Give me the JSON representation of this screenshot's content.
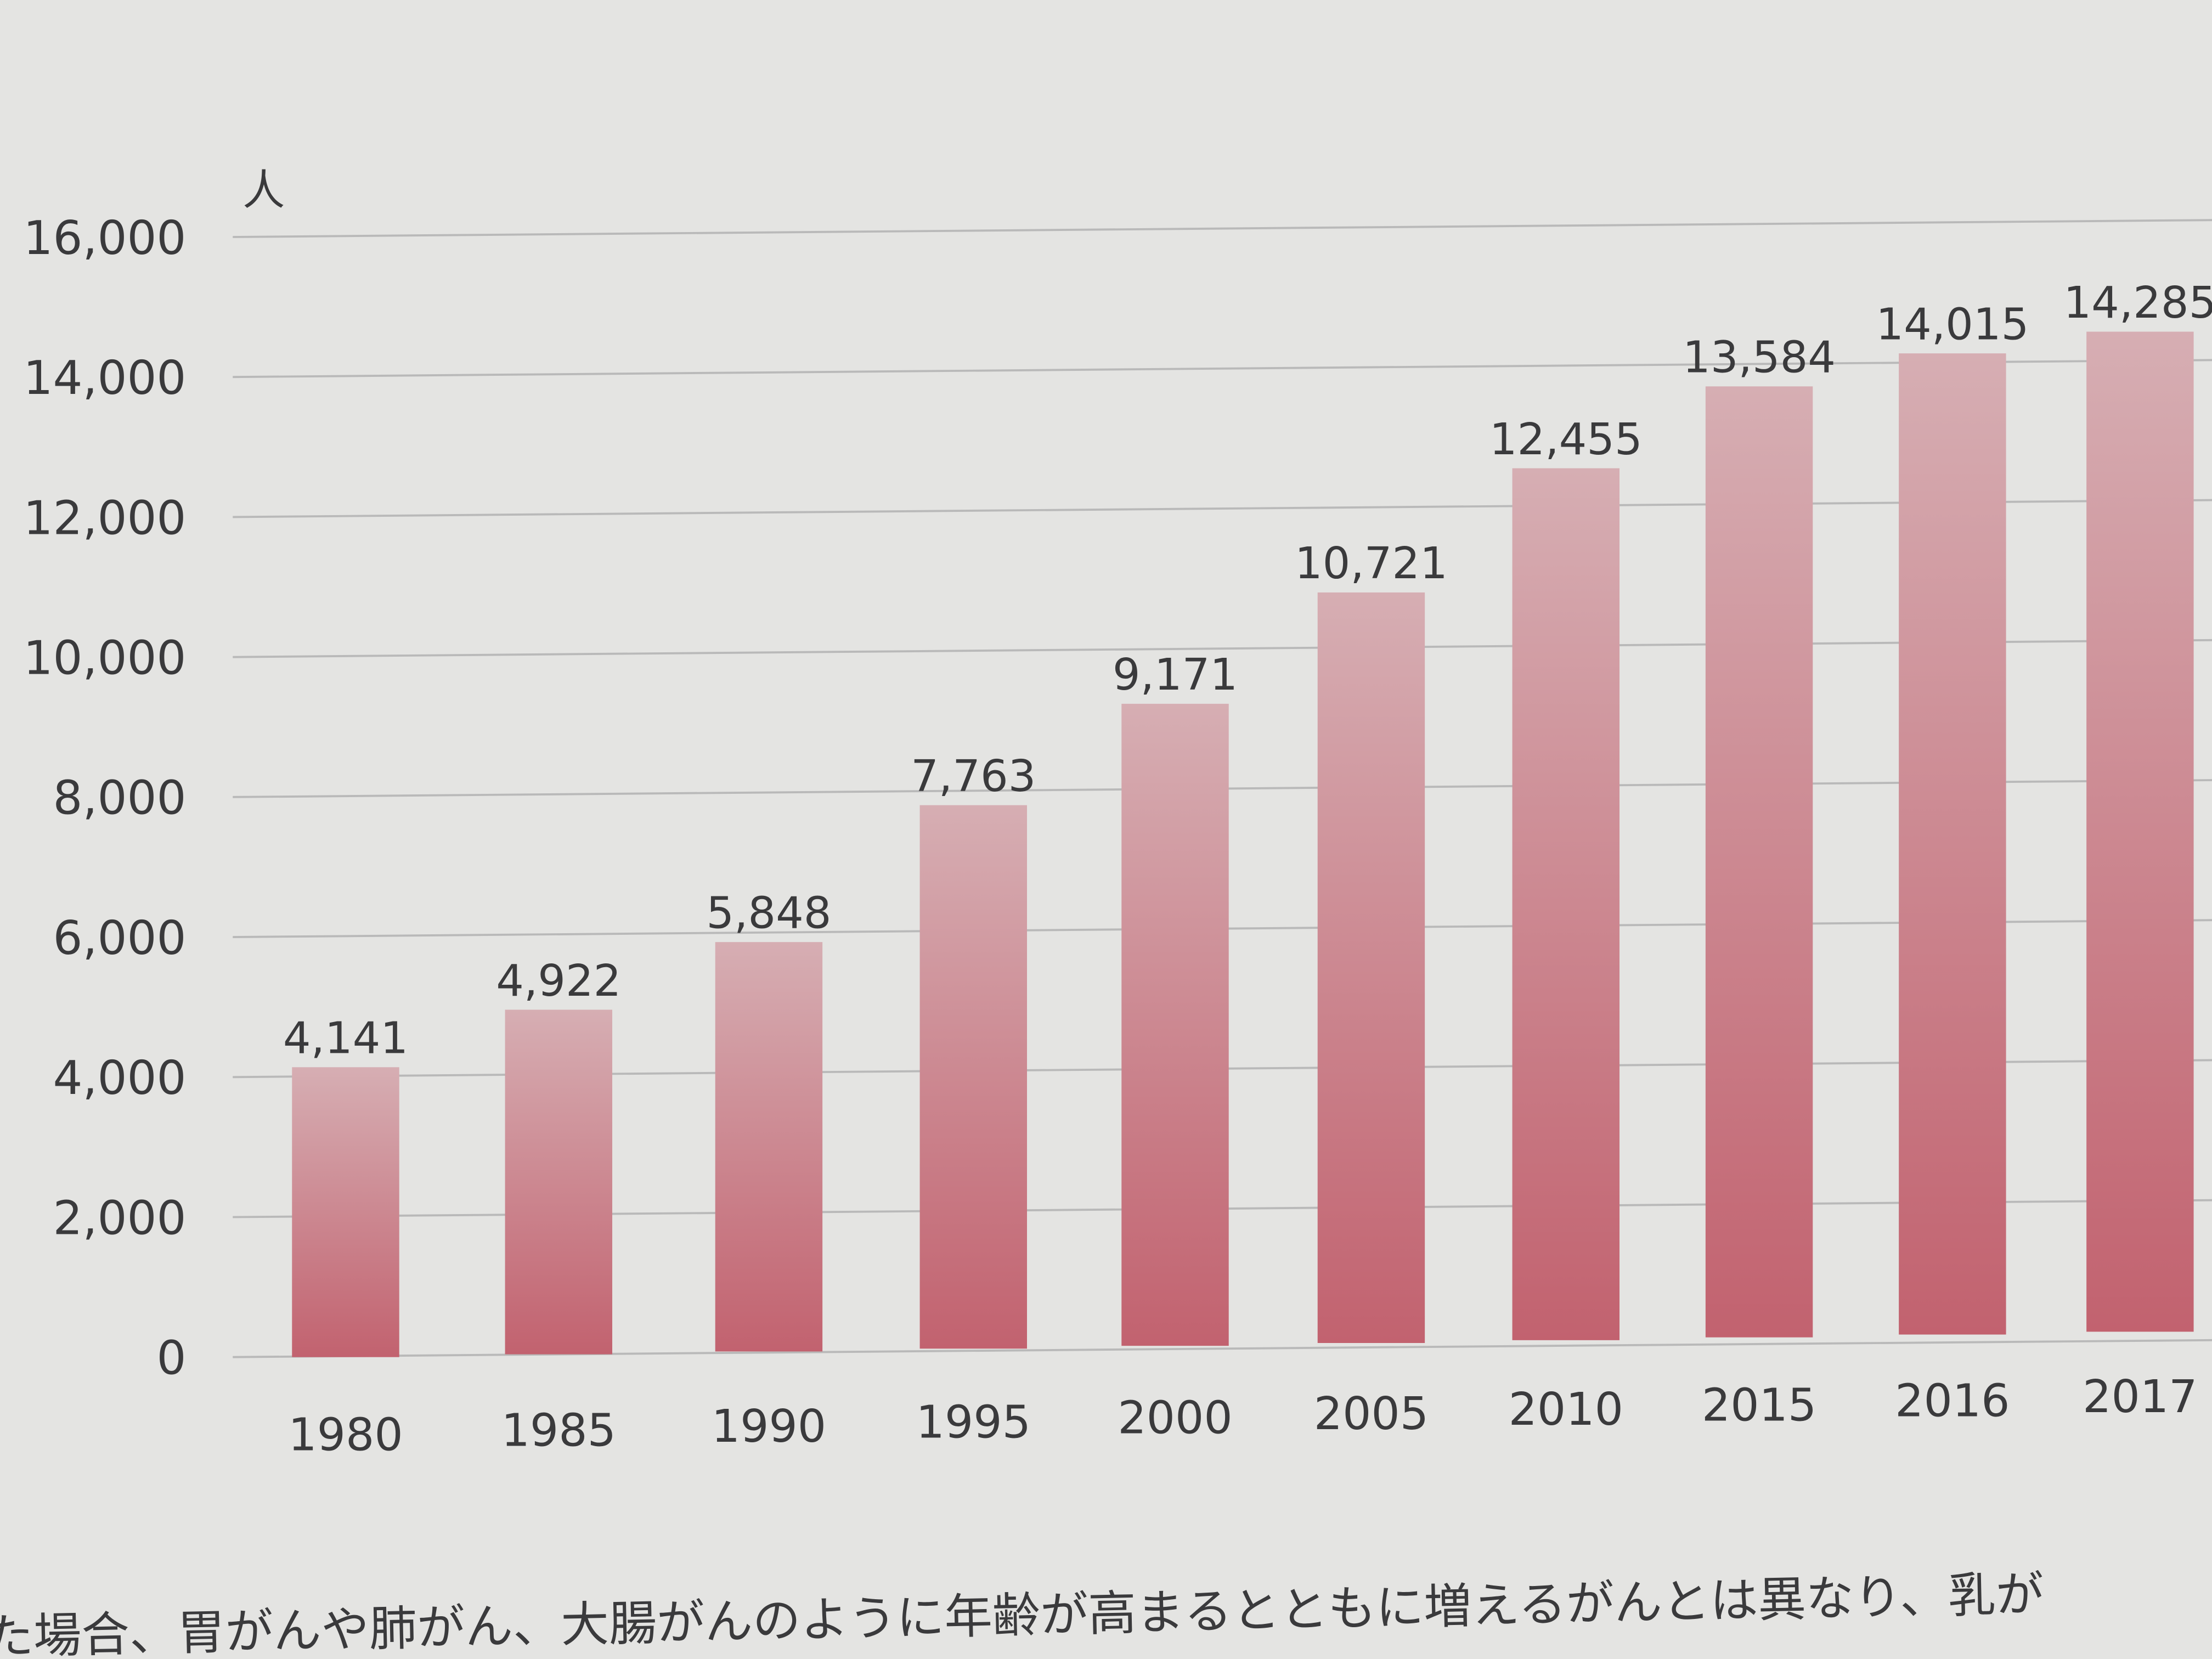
{
  "chart_data": {
    "type": "bar",
    "title": "",
    "xlabel": "",
    "ylabel": "人",
    "categories": [
      "1980",
      "1985",
      "1990",
      "1995",
      "2000",
      "2005",
      "2010",
      "2015",
      "2016",
      "2017"
    ],
    "values": [
      4141,
      4922,
      5848,
      7763,
      9171,
      10721,
      12455,
      13584,
      14015,
      14285
    ],
    "data_labels": [
      "4,141",
      "4,922",
      "5,848",
      "7,763",
      "9,171",
      "10,721",
      "12,455",
      "13,584",
      "14,015",
      "14,285"
    ],
    "ylim": [
      0,
      16000
    ],
    "yticks": [
      0,
      2000,
      4000,
      6000,
      8000,
      10000,
      12000,
      14000,
      16000
    ],
    "ytick_labels": [
      "0",
      "2,000",
      "4,000",
      "6,000",
      "8,000",
      "10,000",
      "12,000",
      "14,000",
      "16,000"
    ],
    "grid": true,
    "colors": {
      "bar_top": "#d6aeb3",
      "bar_bottom": "#c2626f",
      "grid": "#b9b9b9",
      "background": "#e4e4e2"
    }
  },
  "caption": "た場合、胃がんや肺がん、大腸がんのように年齢が高まるとともに増えるがんとは異なり、乳が"
}
